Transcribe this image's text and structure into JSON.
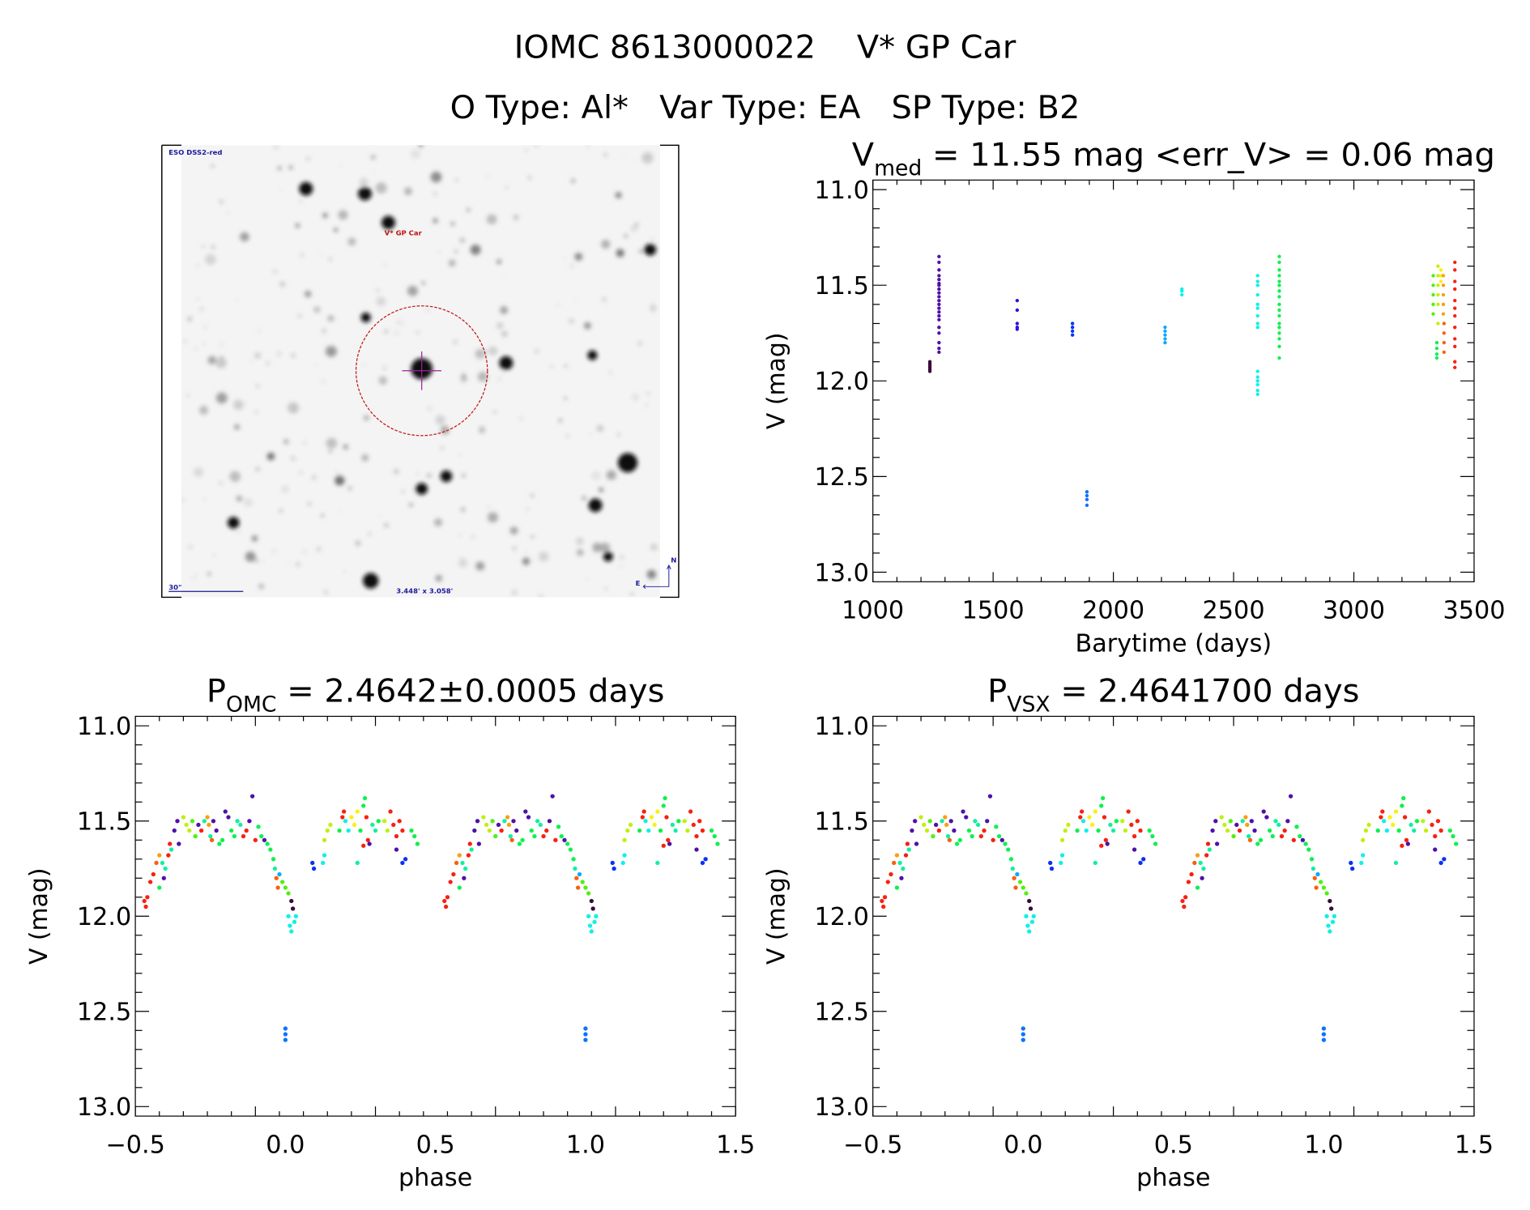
{
  "header": {
    "title": "IOMC 8613000022    V* GP Car",
    "subtitle": "O Type: Al*   Var Type: EA   SP Type: B2"
  },
  "finder_image": {
    "survey_label": "ESO DSS2-red",
    "target_label": "V* GP Car",
    "scale_label": "30\"",
    "fov_label": "3.448' x 3.058'",
    "east_label": "E",
    "north_label": "N",
    "colors": {
      "circle": "#c01010",
      "crosshair": "#a020a0",
      "annotation": "#1a1a9a"
    }
  },
  "palette": [
    "#3a0a3a",
    "#5010a8",
    "#3010e0",
    "#0a30f8",
    "#1070ff",
    "#10a8ff",
    "#10f0e8",
    "#10f0a0",
    "#10f050",
    "#50f010",
    "#c0f010",
    "#f8f010",
    "#f8a010",
    "#f86010",
    "#f82010"
  ],
  "chart_data": [
    {
      "type": "scatter",
      "title_main": "V",
      "title_sub": "med",
      "title_rest": " = 11.55 mag <err_V> = 0.06 mag",
      "xlabel": "Barytime (days)",
      "ylabel": "V (mag)",
      "xlim": [
        1000,
        3500
      ],
      "ylim": [
        13.05,
        10.95
      ],
      "xticks": [
        "1000",
        "1500",
        "2000",
        "2500",
        "3000",
        "3500"
      ],
      "yticks": [
        "11.0",
        "11.5",
        "12.0",
        "12.5",
        "13.0"
      ],
      "groups": [
        {
          "t": 1237,
          "c": 0,
          "mags": [
            11.9,
            11.91,
            11.92,
            11.93,
            11.94,
            11.95
          ]
        },
        {
          "t": 1275,
          "c": 1,
          "mags": [
            11.35,
            11.38,
            11.42,
            11.45,
            11.47,
            11.49,
            11.5,
            11.52,
            11.54,
            11.56,
            11.58,
            11.6,
            11.62,
            11.64,
            11.66,
            11.68,
            11.72,
            11.75,
            11.8,
            11.83,
            11.85
          ]
        },
        {
          "t": 1600,
          "c": 2,
          "mags": [
            11.58,
            11.63,
            11.7,
            11.72,
            11.73
          ]
        },
        {
          "t": 1830,
          "c": 3,
          "mags": [
            11.7,
            11.72,
            11.74,
            11.76
          ]
        },
        {
          "t": 1890,
          "c": 4,
          "mags": [
            12.58,
            12.6,
            12.62,
            12.65
          ]
        },
        {
          "t": 2215,
          "c": 5,
          "mags": [
            11.72,
            11.74,
            11.76,
            11.78,
            11.8
          ]
        },
        {
          "t": 2285,
          "c": 6,
          "mags": [
            11.52,
            11.53,
            11.55
          ]
        },
        {
          "t": 2600,
          "c": 6,
          "mags": [
            11.45,
            11.48,
            11.5,
            11.55,
            11.6,
            11.62,
            11.66,
            11.7,
            11.72,
            11.95,
            11.98,
            12.0,
            12.02,
            12.05,
            12.07
          ]
        },
        {
          "t": 2690,
          "c": 8,
          "mags": [
            11.35,
            11.38,
            11.42,
            11.45,
            11.48,
            11.5,
            11.53,
            11.56,
            11.6,
            11.63,
            11.66,
            11.7,
            11.72,
            11.75,
            11.78,
            11.82,
            11.88
          ]
        },
        {
          "t": 3330,
          "c": 9,
          "mags": [
            11.45,
            11.5,
            11.55,
            11.6,
            11.65
          ]
        },
        {
          "t": 3345,
          "c": 8,
          "mags": [
            11.8,
            11.83,
            11.86,
            11.88
          ]
        },
        {
          "t": 3350,
          "c": 10,
          "mags": [
            11.4,
            11.45,
            11.5,
            11.55,
            11.6,
            11.7
          ]
        },
        {
          "t": 3362,
          "c": 11,
          "mags": [
            11.42,
            11.45,
            11.48
          ]
        },
        {
          "t": 3372,
          "c": 12,
          "mags": [
            11.45,
            11.5,
            11.55,
            11.6,
            11.65
          ]
        },
        {
          "t": 3375,
          "c": 13,
          "mags": [
            11.7,
            11.75,
            11.8,
            11.85
          ]
        },
        {
          "t": 3420,
          "c": 14,
          "mags": [
            11.38,
            11.42,
            11.48,
            11.52,
            11.58,
            11.62,
            11.66,
            11.72,
            11.78,
            11.82,
            11.9,
            11.93
          ]
        }
      ]
    },
    {
      "type": "scatter",
      "title_main": "P",
      "title_sub": "OMC",
      "title_rest": " = 2.4642±0.0005 days",
      "xlabel": "phase",
      "ylabel": "V (mag)",
      "xlim": [
        -0.5,
        1.5
      ],
      "ylim": [
        13.05,
        10.95
      ],
      "xticks": [
        "−0.5",
        "0.0",
        "0.5",
        "1.0",
        "1.5"
      ],
      "yticks": [
        "11.0",
        "11.5",
        "12.0",
        "12.5",
        "13.0"
      ],
      "points": [
        [
          -0.47,
          11.92,
          14
        ],
        [
          -0.465,
          11.95,
          14
        ],
        [
          -0.46,
          11.9,
          14
        ],
        [
          -0.45,
          11.82,
          14
        ],
        [
          -0.44,
          11.78,
          14
        ],
        [
          -0.43,
          11.72,
          13
        ],
        [
          -0.42,
          11.68,
          12
        ],
        [
          -0.41,
          11.72,
          7
        ],
        [
          -0.4,
          11.75,
          7
        ],
        [
          -0.42,
          11.85,
          8
        ],
        [
          -0.405,
          11.8,
          1
        ],
        [
          -0.39,
          11.68,
          14
        ],
        [
          -0.385,
          11.62,
          14
        ],
        [
          -0.38,
          11.65,
          7
        ],
        [
          -0.37,
          11.55,
          1
        ],
        [
          -0.36,
          11.5,
          1
        ],
        [
          -0.355,
          11.62,
          1
        ],
        [
          -0.34,
          11.48,
          10
        ],
        [
          -0.33,
          11.52,
          10
        ],
        [
          -0.32,
          11.55,
          10
        ],
        [
          -0.31,
          11.5,
          9
        ],
        [
          -0.3,
          11.58,
          9
        ],
        [
          -0.29,
          11.52,
          1
        ],
        [
          -0.28,
          11.55,
          14
        ],
        [
          -0.27,
          11.5,
          7
        ],
        [
          -0.26,
          11.48,
          12
        ],
        [
          -0.255,
          11.52,
          12
        ],
        [
          -0.25,
          11.58,
          7
        ],
        [
          -0.245,
          11.6,
          13
        ],
        [
          -0.24,
          11.5,
          1
        ],
        [
          -0.23,
          11.55,
          1
        ],
        [
          -0.22,
          11.62,
          8
        ],
        [
          -0.21,
          11.6,
          8
        ],
        [
          -0.2,
          11.45,
          1
        ],
        [
          -0.19,
          11.48,
          1
        ],
        [
          -0.18,
          11.55,
          8
        ],
        [
          -0.17,
          11.58,
          8
        ],
        [
          -0.16,
          11.5,
          7
        ],
        [
          -0.15,
          11.52,
          7
        ],
        [
          -0.14,
          11.58,
          14
        ],
        [
          -0.13,
          11.55,
          14
        ],
        [
          -0.12,
          11.5,
          1
        ],
        [
          -0.11,
          11.37,
          1
        ],
        [
          -0.1,
          11.6,
          14
        ],
        [
          -0.09,
          11.53,
          8
        ],
        [
          -0.08,
          11.58,
          8
        ],
        [
          -0.07,
          11.6,
          1
        ],
        [
          -0.06,
          11.62,
          8
        ],
        [
          -0.05,
          11.65,
          8
        ],
        [
          -0.04,
          11.7,
          8
        ],
        [
          -0.035,
          11.75,
          7
        ],
        [
          -0.03,
          11.8,
          13
        ],
        [
          -0.025,
          11.85,
          13
        ],
        [
          -0.02,
          11.78,
          5
        ],
        [
          -0.01,
          11.82,
          9
        ],
        [
          0.0,
          11.85,
          9
        ],
        [
          0.01,
          11.88,
          9
        ],
        [
          0.02,
          11.92,
          0
        ],
        [
          0.025,
          11.96,
          0
        ],
        [
          0.01,
          12.0,
          6
        ],
        [
          0.015,
          12.05,
          6
        ],
        [
          0.02,
          12.08,
          6
        ],
        [
          0.03,
          12.03,
          6
        ],
        [
          0.035,
          12.0,
          6
        ],
        [
          0.0,
          12.59,
          4
        ],
        [
          0.0,
          12.62,
          4
        ],
        [
          0.0,
          12.65,
          4
        ],
        [
          0.09,
          11.72,
          3
        ],
        [
          0.095,
          11.75,
          3
        ],
        [
          0.125,
          11.72,
          6
        ],
        [
          0.13,
          11.68,
          6
        ],
        [
          0.13,
          11.6,
          10
        ],
        [
          0.14,
          11.55,
          10
        ],
        [
          0.15,
          11.52,
          10
        ],
        [
          0.18,
          11.55,
          8
        ],
        [
          0.19,
          11.48,
          14
        ],
        [
          0.195,
          11.45,
          14
        ],
        [
          0.2,
          11.5,
          6
        ],
        [
          0.21,
          11.55,
          6
        ],
        [
          0.22,
          11.48,
          11
        ],
        [
          0.23,
          11.52,
          11
        ],
        [
          0.24,
          11.45,
          11
        ],
        [
          0.25,
          11.55,
          8
        ],
        [
          0.26,
          11.42,
          8
        ],
        [
          0.265,
          11.38,
          8
        ],
        [
          0.27,
          11.48,
          14
        ],
        [
          0.275,
          11.6,
          14
        ],
        [
          0.28,
          11.62,
          1
        ],
        [
          0.29,
          11.52,
          7
        ],
        [
          0.3,
          11.55,
          7
        ],
        [
          0.24,
          11.72,
          7
        ],
        [
          0.26,
          11.63,
          14
        ],
        [
          0.31,
          11.5,
          8
        ],
        [
          0.33,
          11.5,
          10
        ],
        [
          0.34,
          11.55,
          10
        ],
        [
          0.35,
          11.45,
          14
        ],
        [
          0.36,
          11.52,
          14
        ],
        [
          0.37,
          11.58,
          14
        ],
        [
          0.38,
          11.5,
          14
        ],
        [
          0.39,
          11.55,
          14
        ],
        [
          0.37,
          11.65,
          1
        ],
        [
          0.39,
          11.72,
          3
        ],
        [
          0.4,
          11.7,
          3
        ],
        [
          0.42,
          11.55,
          8
        ],
        [
          0.43,
          11.58,
          8
        ],
        [
          0.44,
          11.62,
          8
        ]
      ],
      "repeat_period": 1
    },
    {
      "type": "scatter",
      "title_main": "P",
      "title_sub": "VSX",
      "title_rest": " = 2.4641700 days",
      "xlabel": "phase",
      "ylabel": "V (mag)",
      "xlim": [
        -0.5,
        1.5
      ],
      "ylim": [
        13.05,
        10.95
      ],
      "xticks": [
        "−0.5",
        "0.0",
        "0.5",
        "1.0",
        "1.5"
      ],
      "yticks": [
        "11.0",
        "11.5",
        "12.0",
        "12.5",
        "13.0"
      ],
      "points_same_as_chart": 1,
      "repeat_period": 1
    }
  ]
}
